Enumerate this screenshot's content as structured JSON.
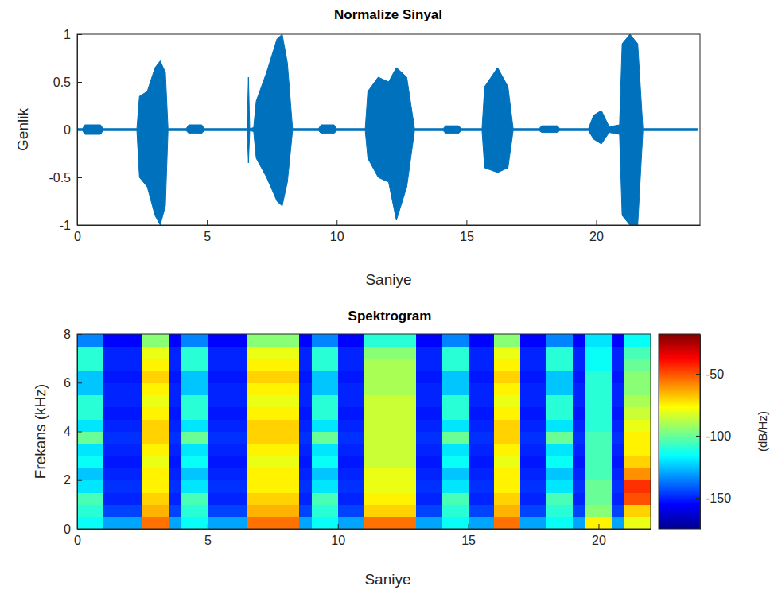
{
  "chart_data": [
    {
      "type": "area",
      "title": "Normalize Sinyal",
      "xlabel": "Saniye",
      "ylabel": "Genlik",
      "color": "#0072bd",
      "x": [
        0,
        0.2,
        0.3,
        0.9,
        1,
        2.3,
        2.4,
        2.7,
        3.0,
        3.2,
        3.4,
        3.5,
        4.2,
        4.3,
        4.8,
        4.9,
        6.55,
        6.6,
        6.65,
        6.8,
        6.9,
        7.3,
        7.7,
        7.9,
        8.1,
        8.3,
        9.3,
        9.4,
        9.9,
        10,
        11.1,
        11.2,
        11.6,
        12.0,
        12.3,
        12.7,
        13.0,
        14.1,
        14.2,
        14.7,
        14.8,
        15.6,
        15.7,
        16.2,
        16.6,
        16.8,
        17.8,
        17.9,
        18.5,
        18.6,
        19.7,
        19.9,
        20.2,
        20.5,
        20.9,
        21.0,
        21.3,
        21.6,
        21.8,
        23.9
      ],
      "upper": [
        0.01,
        0.01,
        0.05,
        0.05,
        0.01,
        0.01,
        0.35,
        0.4,
        0.65,
        0.72,
        0.6,
        0.01,
        0.01,
        0.05,
        0.05,
        0.01,
        0.01,
        0.55,
        0.01,
        0.02,
        0.3,
        0.6,
        0.95,
        1,
        0.7,
        0.01,
        0.01,
        0.05,
        0.05,
        0.01,
        0.01,
        0.4,
        0.55,
        0.5,
        0.65,
        0.55,
        0.01,
        0.01,
        0.04,
        0.04,
        0.01,
        0.01,
        0.45,
        0.65,
        0.45,
        0.01,
        0.01,
        0.04,
        0.04,
        0.01,
        0.01,
        0.15,
        0.2,
        0.03,
        0.05,
        0.9,
        1,
        0.9,
        0.01,
        0.01
      ],
      "lower": [
        -0.01,
        -0.01,
        -0.05,
        -0.05,
        -0.01,
        -0.01,
        -0.5,
        -0.6,
        -0.9,
        -1,
        -0.8,
        -0.01,
        -0.01,
        -0.04,
        -0.04,
        -0.01,
        -0.01,
        -0.35,
        -0.01,
        -0.02,
        -0.3,
        -0.5,
        -0.75,
        -0.8,
        -0.55,
        -0.01,
        -0.01,
        -0.04,
        -0.04,
        -0.01,
        -0.01,
        -0.3,
        -0.5,
        -0.55,
        -0.95,
        -0.6,
        -0.01,
        -0.01,
        -0.04,
        -0.04,
        -0.01,
        -0.01,
        -0.4,
        -0.45,
        -0.4,
        -0.01,
        -0.01,
        -0.03,
        -0.03,
        -0.01,
        -0.01,
        -0.1,
        -0.15,
        -0.03,
        -0.05,
        -0.9,
        -1,
        -1,
        -0.01,
        -0.01
      ],
      "xlim": [
        0,
        24
      ],
      "ylim": [
        -1,
        1
      ],
      "xticks": [
        0,
        5,
        10,
        15,
        20
      ],
      "yticks": [
        -1,
        -0.5,
        0,
        0.5,
        1
      ]
    },
    {
      "type": "heatmap",
      "title": "Spektrogram",
      "xlabel": "Saniye",
      "ylabel": "Frekans (kHz)",
      "color": "jet",
      "x_edges": [
        0,
        0.5,
        1,
        1.5,
        2,
        2.5,
        3,
        3.5,
        4,
        4.5,
        5,
        5.5,
        6,
        6.5,
        7,
        7.5,
        8,
        8.5,
        9,
        9.5,
        10,
        10.5,
        11,
        11.5,
        12,
        12.5,
        13,
        13.5,
        14,
        14.5,
        15,
        15.5,
        16,
        16.5,
        17,
        17.5,
        18,
        18.5,
        19,
        19.5,
        20,
        20.5,
        21,
        21.5,
        22
      ],
      "y_edges": [
        0,
        0.5,
        1,
        1.5,
        2,
        2.5,
        3,
        3.5,
        4,
        4.5,
        5,
        5.5,
        6,
        6.5,
        7,
        7.5,
        8
      ],
      "cells": [
        [
          -115,
          -115,
          -130,
          -130,
          -130,
          -55,
          -55,
          -130,
          -115,
          -115,
          -130,
          -130,
          -130,
          -55,
          -55,
          -55,
          -55,
          -130,
          -115,
          -115,
          -130,
          -130,
          -55,
          -55,
          -55,
          -55,
          -130,
          -130,
          -115,
          -115,
          -130,
          -130,
          -55,
          -55,
          -130,
          -130,
          -115,
          -115,
          -130,
          -75,
          -75,
          -130,
          -80,
          -80
        ],
        [
          -110,
          -110,
          -145,
          -145,
          -145,
          -65,
          -65,
          -145,
          -110,
          -110,
          -145,
          -145,
          -145,
          -65,
          -65,
          -65,
          -65,
          -145,
          -110,
          -110,
          -145,
          -145,
          -70,
          -70,
          -70,
          -70,
          -145,
          -145,
          -110,
          -110,
          -145,
          -145,
          -65,
          -65,
          -145,
          -145,
          -110,
          -110,
          -145,
          -95,
          -95,
          -145,
          -70,
          -70
        ],
        [
          -105,
          -105,
          -150,
          -150,
          -150,
          -70,
          -70,
          -150,
          -105,
          -105,
          -150,
          -150,
          -150,
          -70,
          -70,
          -70,
          -70,
          -150,
          -105,
          -105,
          -150,
          -150,
          -75,
          -75,
          -75,
          -75,
          -150,
          -150,
          -105,
          -105,
          -150,
          -150,
          -70,
          -70,
          -150,
          -150,
          -105,
          -105,
          -150,
          -100,
          -100,
          -150,
          -50,
          -50
        ],
        [
          -120,
          -120,
          -148,
          -148,
          -148,
          -75,
          -75,
          -148,
          -120,
          -120,
          -148,
          -148,
          -148,
          -75,
          -75,
          -75,
          -75,
          -148,
          -120,
          -120,
          -148,
          -148,
          -80,
          -80,
          -80,
          -80,
          -148,
          -148,
          -120,
          -120,
          -148,
          -148,
          -75,
          -75,
          -148,
          -148,
          -120,
          -120,
          -148,
          -100,
          -100,
          -148,
          -45,
          -45
        ],
        [
          -125,
          -125,
          -150,
          -150,
          -150,
          -75,
          -75,
          -150,
          -125,
          -125,
          -150,
          -150,
          -150,
          -75,
          -75,
          -75,
          -75,
          -150,
          -125,
          -125,
          -150,
          -150,
          -80,
          -80,
          -80,
          -80,
          -150,
          -150,
          -125,
          -125,
          -150,
          -150,
          -75,
          -75,
          -150,
          -150,
          -125,
          -125,
          -150,
          -105,
          -105,
          -150,
          -60,
          -60
        ],
        [
          -115,
          -115,
          -152,
          -152,
          -152,
          -80,
          -80,
          -152,
          -115,
          -115,
          -152,
          -152,
          -152,
          -80,
          -80,
          -80,
          -80,
          -152,
          -115,
          -115,
          -152,
          -152,
          -85,
          -85,
          -85,
          -85,
          -152,
          -152,
          -115,
          -115,
          -152,
          -152,
          -80,
          -80,
          -152,
          -152,
          -115,
          -115,
          -152,
          -105,
          -105,
          -152,
          -70,
          -70
        ],
        [
          -120,
          -120,
          -150,
          -150,
          -150,
          -75,
          -75,
          -150,
          -120,
          -120,
          -150,
          -150,
          -150,
          -75,
          -75,
          -75,
          -75,
          -150,
          -120,
          -120,
          -150,
          -150,
          -85,
          -85,
          -85,
          -85,
          -150,
          -150,
          -120,
          -120,
          -150,
          -150,
          -75,
          -75,
          -150,
          -150,
          -120,
          -120,
          -150,
          -105,
          -105,
          -150,
          -75,
          -75
        ],
        [
          -100,
          -100,
          -148,
          -148,
          -148,
          -70,
          -70,
          -148,
          -100,
          -100,
          -148,
          -148,
          -148,
          -70,
          -70,
          -70,
          -70,
          -148,
          -100,
          -100,
          -148,
          -148,
          -85,
          -85,
          -85,
          -85,
          -148,
          -148,
          -100,
          -100,
          -148,
          -148,
          -70,
          -70,
          -148,
          -148,
          -100,
          -100,
          -148,
          -105,
          -105,
          -148,
          -75,
          -75
        ],
        [
          -120,
          -120,
          -150,
          -150,
          -150,
          -70,
          -70,
          -150,
          -120,
          -120,
          -150,
          -150,
          -150,
          -70,
          -70,
          -70,
          -70,
          -150,
          -120,
          -120,
          -150,
          -150,
          -85,
          -85,
          -85,
          -85,
          -150,
          -150,
          -120,
          -120,
          -150,
          -150,
          -70,
          -70,
          -150,
          -150,
          -120,
          -120,
          -150,
          -110,
          -110,
          -150,
          -80,
          -80
        ],
        [
          -110,
          -110,
          -152,
          -152,
          -152,
          -75,
          -75,
          -152,
          -110,
          -110,
          -152,
          -152,
          -152,
          -75,
          -75,
          -75,
          -75,
          -152,
          -110,
          -110,
          -152,
          -152,
          -85,
          -85,
          -85,
          -85,
          -152,
          -152,
          -110,
          -110,
          -152,
          -152,
          -75,
          -75,
          -152,
          -152,
          -110,
          -110,
          -152,
          -110,
          -110,
          -152,
          -85,
          -85
        ],
        [
          -110,
          -110,
          -150,
          -150,
          -150,
          -80,
          -80,
          -150,
          -110,
          -110,
          -150,
          -150,
          -150,
          -80,
          -80,
          -80,
          -80,
          -150,
          -110,
          -110,
          -150,
          -150,
          -85,
          -85,
          -85,
          -85,
          -150,
          -150,
          -110,
          -110,
          -150,
          -150,
          -80,
          -80,
          -150,
          -150,
          -110,
          -110,
          -150,
          -110,
          -110,
          -150,
          -90,
          -90
        ],
        [
          -125,
          -125,
          -150,
          -150,
          -150,
          -75,
          -75,
          -150,
          -125,
          -125,
          -150,
          -150,
          -150,
          -75,
          -75,
          -75,
          -75,
          -150,
          -125,
          -125,
          -150,
          -150,
          -90,
          -90,
          -90,
          -90,
          -150,
          -150,
          -125,
          -125,
          -150,
          -150,
          -75,
          -75,
          -150,
          -150,
          -125,
          -125,
          -150,
          -110,
          -110,
          -150,
          -95,
          -95
        ],
        [
          -125,
          -125,
          -152,
          -152,
          -152,
          -70,
          -70,
          -152,
          -125,
          -125,
          -152,
          -152,
          -152,
          -70,
          -70,
          -70,
          -70,
          -152,
          -125,
          -125,
          -152,
          -152,
          -90,
          -90,
          -90,
          -90,
          -152,
          -152,
          -125,
          -125,
          -152,
          -152,
          -70,
          -70,
          -152,
          -152,
          -125,
          -125,
          -152,
          -110,
          -110,
          -152,
          -95,
          -95
        ],
        [
          -110,
          -110,
          -150,
          -150,
          -150,
          -75,
          -75,
          -150,
          -110,
          -110,
          -150,
          -150,
          -150,
          -75,
          -75,
          -75,
          -75,
          -150,
          -110,
          -110,
          -150,
          -150,
          -90,
          -90,
          -90,
          -90,
          -150,
          -150,
          -110,
          -110,
          -150,
          -150,
          -75,
          -75,
          -150,
          -150,
          -110,
          -110,
          -150,
          -115,
          -115,
          -150,
          -100,
          -100
        ],
        [
          -110,
          -110,
          -150,
          -150,
          -150,
          -80,
          -80,
          -150,
          -110,
          -110,
          -150,
          -150,
          -150,
          -80,
          -80,
          -80,
          -80,
          -150,
          -110,
          -110,
          -150,
          -150,
          -95,
          -95,
          -95,
          -95,
          -150,
          -150,
          -110,
          -110,
          -150,
          -150,
          -80,
          -80,
          -150,
          -150,
          -110,
          -110,
          -150,
          -115,
          -115,
          -150,
          -105,
          -105
        ],
        [
          -135,
          -135,
          -155,
          -155,
          -155,
          -95,
          -95,
          -155,
          -135,
          -135,
          -155,
          -155,
          -155,
          -95,
          -95,
          -95,
          -95,
          -155,
          -135,
          -135,
          -155,
          -155,
          -110,
          -110,
          -110,
          -110,
          -155,
          -155,
          -135,
          -135,
          -155,
          -155,
          -95,
          -95,
          -155,
          -155,
          -135,
          -135,
          -155,
          -120,
          -120,
          -155,
          -115,
          -115
        ]
      ],
      "xlim": [
        0,
        22
      ],
      "ylim": [
        0,
        8
      ],
      "xticks": [
        0,
        5,
        10,
        15,
        20
      ],
      "yticks": [
        0,
        2,
        4,
        6,
        8
      ],
      "colorbar": {
        "label": "(dB/Hz)",
        "range": [
          -175,
          -18
        ],
        "ticks": [
          -150,
          -100,
          -50
        ]
      }
    }
  ]
}
